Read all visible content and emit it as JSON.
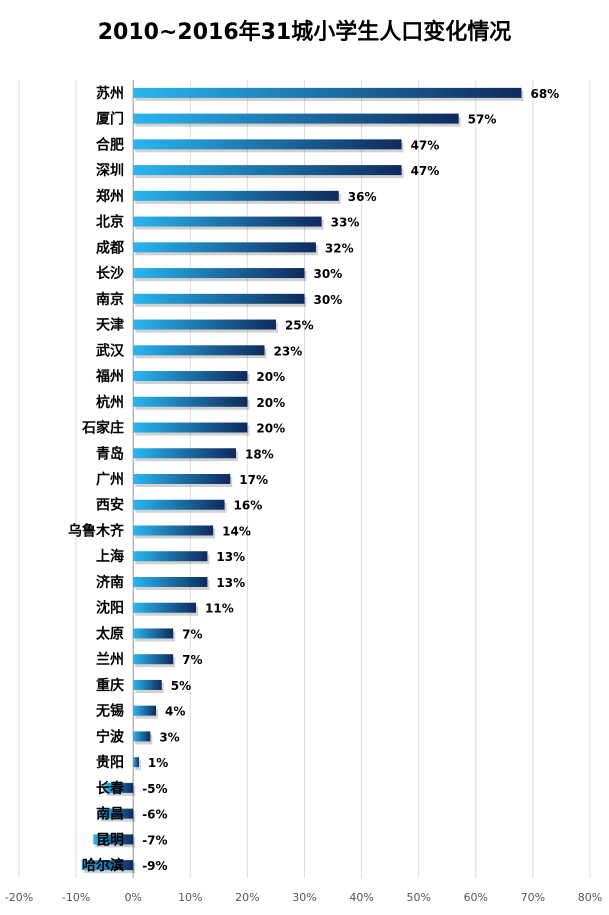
{
  "chart_data": {
    "type": "bar",
    "orientation": "horizontal",
    "title": "2010~2016年31城小学生人口变化情况",
    "xlabel": "",
    "ylabel": "",
    "xlim": [
      -0.2,
      0.8
    ],
    "x_ticks": [
      "-20%",
      "-10%",
      "0%",
      "10%",
      "20%",
      "30%",
      "40%",
      "50%",
      "60%",
      "70%",
      "80%"
    ],
    "grid": true,
    "bar_color_start": "#29b6f0",
    "bar_color_end": "#0f2a5c",
    "categories": [
      "苏州",
      "厦门",
      "合肥",
      "深圳",
      "郑州",
      "北京",
      "成都",
      "长沙",
      "南京",
      "天津",
      "武汉",
      "福州",
      "杭州",
      "石家庄",
      "青岛",
      "广州",
      "西安",
      "乌鲁木齐",
      "上海",
      "济南",
      "沈阳",
      "太原",
      "兰州",
      "重庆",
      "无锡",
      "宁波",
      "贵阳",
      "长春",
      "南昌",
      "昆明",
      "哈尔滨"
    ],
    "values": [
      0.68,
      0.57,
      0.47,
      0.47,
      0.36,
      0.33,
      0.32,
      0.3,
      0.3,
      0.25,
      0.23,
      0.2,
      0.2,
      0.2,
      0.18,
      0.17,
      0.16,
      0.14,
      0.13,
      0.13,
      0.11,
      0.07,
      0.07,
      0.05,
      0.04,
      0.03,
      0.01,
      -0.05,
      -0.06,
      -0.07,
      -0.09
    ],
    "value_labels": [
      "68%",
      "57%",
      "47%",
      "47%",
      "36%",
      "33%",
      "32%",
      "30%",
      "30%",
      "25%",
      "23%",
      "20%",
      "20%",
      "20%",
      "18%",
      "17%",
      "16%",
      "14%",
      "13%",
      "13%",
      "11%",
      "7%",
      "7%",
      "5%",
      "4%",
      "3%",
      "1%",
      "-5%",
      "-6%",
      "-7%",
      "-9%"
    ]
  }
}
